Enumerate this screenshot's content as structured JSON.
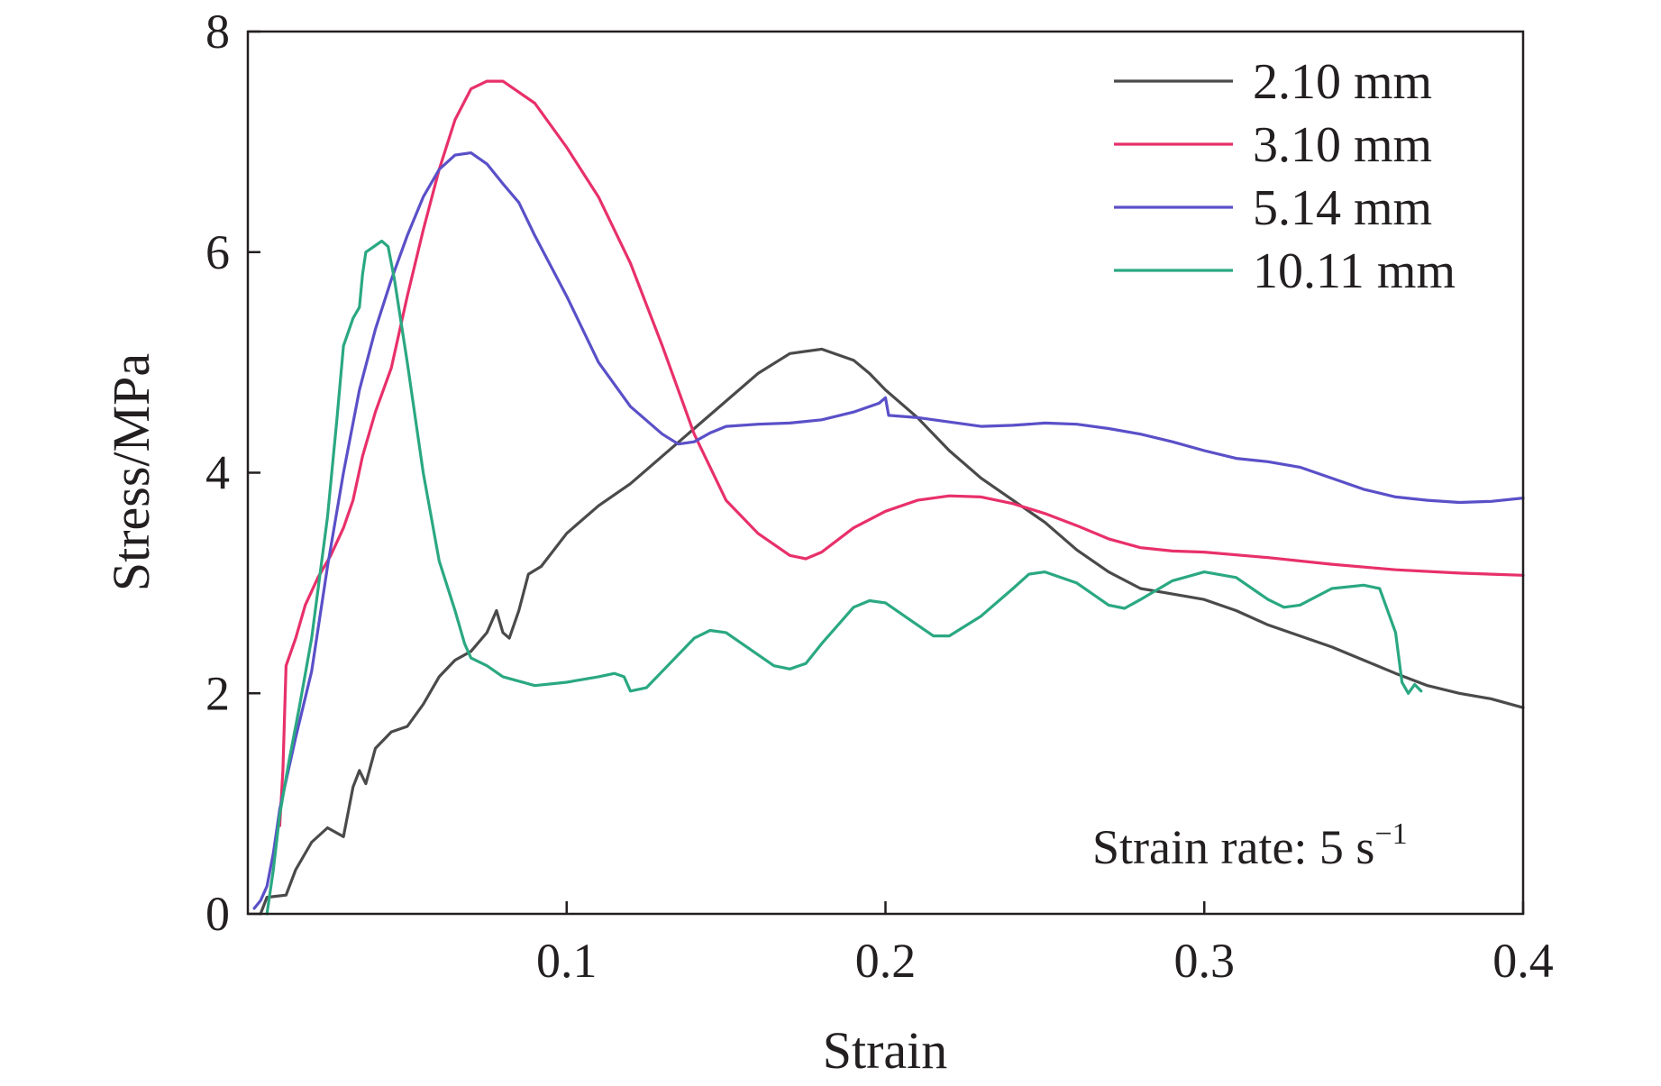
{
  "chart_data": {
    "type": "line",
    "title": "",
    "xlabel": "Strain",
    "ylabel": "Stress/MPa",
    "xlim": [
      0,
      0.4
    ],
    "ylim": [
      0,
      8
    ],
    "x_ticks": [
      "0.1",
      "0.2",
      "0.3",
      "0.4"
    ],
    "y_ticks": [
      "0",
      "2",
      "4",
      "6",
      "8"
    ],
    "x_tick_values": [
      0.1,
      0.2,
      0.3,
      0.4
    ],
    "y_tick_values": [
      0,
      2,
      4,
      6,
      8
    ],
    "grid": false,
    "legend_position": "top-right",
    "annotation": "Strain rate: 5 s",
    "annotation_superscript": "−1",
    "series": [
      {
        "name": "2.10 mm",
        "color": "#4a4a4a",
        "points": [
          [
            0.004,
            0.0
          ],
          [
            0.006,
            0.15
          ],
          [
            0.012,
            0.17
          ],
          [
            0.015,
            0.4
          ],
          [
            0.02,
            0.65
          ],
          [
            0.025,
            0.78
          ],
          [
            0.03,
            0.7
          ],
          [
            0.033,
            1.15
          ],
          [
            0.035,
            1.3
          ],
          [
            0.037,
            1.18
          ],
          [
            0.04,
            1.5
          ],
          [
            0.045,
            1.65
          ],
          [
            0.05,
            1.7
          ],
          [
            0.055,
            1.9
          ],
          [
            0.06,
            2.15
          ],
          [
            0.065,
            2.3
          ],
          [
            0.07,
            2.38
          ],
          [
            0.075,
            2.55
          ],
          [
            0.078,
            2.75
          ],
          [
            0.08,
            2.55
          ],
          [
            0.082,
            2.5
          ],
          [
            0.085,
            2.75
          ],
          [
            0.088,
            3.08
          ],
          [
            0.092,
            3.15
          ],
          [
            0.1,
            3.45
          ],
          [
            0.11,
            3.7
          ],
          [
            0.12,
            3.9
          ],
          [
            0.13,
            4.15
          ],
          [
            0.14,
            4.4
          ],
          [
            0.15,
            4.65
          ],
          [
            0.16,
            4.9
          ],
          [
            0.17,
            5.08
          ],
          [
            0.18,
            5.12
          ],
          [
            0.19,
            5.02
          ],
          [
            0.195,
            4.9
          ],
          [
            0.2,
            4.75
          ],
          [
            0.21,
            4.5
          ],
          [
            0.22,
            4.2
          ],
          [
            0.23,
            3.95
          ],
          [
            0.24,
            3.75
          ],
          [
            0.25,
            3.55
          ],
          [
            0.26,
            3.3
          ],
          [
            0.27,
            3.1
          ],
          [
            0.28,
            2.95
          ],
          [
            0.29,
            2.9
          ],
          [
            0.3,
            2.85
          ],
          [
            0.31,
            2.75
          ],
          [
            0.32,
            2.62
          ],
          [
            0.33,
            2.52
          ],
          [
            0.34,
            2.42
          ],
          [
            0.35,
            2.3
          ],
          [
            0.36,
            2.18
          ],
          [
            0.37,
            2.07
          ],
          [
            0.38,
            2.0
          ],
          [
            0.39,
            1.95
          ],
          [
            0.4,
            1.87
          ]
        ]
      },
      {
        "name": "3.10 mm",
        "color": "#e8306a",
        "points": [
          [
            0.01,
            0.8
          ],
          [
            0.011,
            1.3
          ],
          [
            0.012,
            2.25
          ],
          [
            0.015,
            2.5
          ],
          [
            0.018,
            2.8
          ],
          [
            0.022,
            3.05
          ],
          [
            0.026,
            3.25
          ],
          [
            0.03,
            3.5
          ],
          [
            0.033,
            3.75
          ],
          [
            0.036,
            4.15
          ],
          [
            0.04,
            4.55
          ],
          [
            0.045,
            4.95
          ],
          [
            0.05,
            5.6
          ],
          [
            0.055,
            6.2
          ],
          [
            0.06,
            6.75
          ],
          [
            0.065,
            7.2
          ],
          [
            0.07,
            7.48
          ],
          [
            0.075,
            7.55
          ],
          [
            0.08,
            7.55
          ],
          [
            0.09,
            7.35
          ],
          [
            0.1,
            6.95
          ],
          [
            0.11,
            6.5
          ],
          [
            0.12,
            5.9
          ],
          [
            0.13,
            5.15
          ],
          [
            0.14,
            4.35
          ],
          [
            0.15,
            3.75
          ],
          [
            0.16,
            3.45
          ],
          [
            0.17,
            3.25
          ],
          [
            0.175,
            3.22
          ],
          [
            0.18,
            3.28
          ],
          [
            0.19,
            3.5
          ],
          [
            0.2,
            3.65
          ],
          [
            0.21,
            3.75
          ],
          [
            0.22,
            3.79
          ],
          [
            0.23,
            3.78
          ],
          [
            0.24,
            3.72
          ],
          [
            0.25,
            3.63
          ],
          [
            0.26,
            3.52
          ],
          [
            0.27,
            3.4
          ],
          [
            0.28,
            3.32
          ],
          [
            0.29,
            3.29
          ],
          [
            0.3,
            3.28
          ],
          [
            0.32,
            3.23
          ],
          [
            0.34,
            3.17
          ],
          [
            0.36,
            3.12
          ],
          [
            0.38,
            3.09
          ],
          [
            0.4,
            3.07
          ]
        ]
      },
      {
        "name": "5.14 mm",
        "color": "#5a50c8",
        "points": [
          [
            0.002,
            0.05
          ],
          [
            0.004,
            0.12
          ],
          [
            0.006,
            0.25
          ],
          [
            0.008,
            0.55
          ],
          [
            0.01,
            0.95
          ],
          [
            0.015,
            1.6
          ],
          [
            0.02,
            2.2
          ],
          [
            0.025,
            3.15
          ],
          [
            0.03,
            4.0
          ],
          [
            0.035,
            4.75
          ],
          [
            0.04,
            5.3
          ],
          [
            0.045,
            5.75
          ],
          [
            0.05,
            6.15
          ],
          [
            0.055,
            6.5
          ],
          [
            0.06,
            6.75
          ],
          [
            0.065,
            6.88
          ],
          [
            0.07,
            6.9
          ],
          [
            0.075,
            6.8
          ],
          [
            0.08,
            6.62
          ],
          [
            0.085,
            6.45
          ],
          [
            0.09,
            6.15
          ],
          [
            0.1,
            5.6
          ],
          [
            0.11,
            5.0
          ],
          [
            0.12,
            4.6
          ],
          [
            0.13,
            4.35
          ],
          [
            0.135,
            4.26
          ],
          [
            0.14,
            4.28
          ],
          [
            0.145,
            4.36
          ],
          [
            0.15,
            4.42
          ],
          [
            0.16,
            4.44
          ],
          [
            0.17,
            4.45
          ],
          [
            0.18,
            4.48
          ],
          [
            0.19,
            4.55
          ],
          [
            0.198,
            4.63
          ],
          [
            0.2,
            4.68
          ],
          [
            0.201,
            4.52
          ],
          [
            0.21,
            4.5
          ],
          [
            0.22,
            4.46
          ],
          [
            0.23,
            4.42
          ],
          [
            0.24,
            4.43
          ],
          [
            0.25,
            4.45
          ],
          [
            0.26,
            4.44
          ],
          [
            0.27,
            4.4
          ],
          [
            0.28,
            4.35
          ],
          [
            0.29,
            4.28
          ],
          [
            0.3,
            4.2
          ],
          [
            0.31,
            4.13
          ],
          [
            0.32,
            4.1
          ],
          [
            0.33,
            4.05
          ],
          [
            0.34,
            3.95
          ],
          [
            0.35,
            3.85
          ],
          [
            0.36,
            3.78
          ],
          [
            0.37,
            3.75
          ],
          [
            0.38,
            3.73
          ],
          [
            0.39,
            3.74
          ],
          [
            0.4,
            3.77
          ]
        ]
      },
      {
        "name": "10.11 mm",
        "color": "#2aa882",
        "points": [
          [
            0.006,
            0.0
          ],
          [
            0.008,
            0.4
          ],
          [
            0.01,
            0.9
          ],
          [
            0.013,
            1.4
          ],
          [
            0.016,
            1.85
          ],
          [
            0.02,
            2.5
          ],
          [
            0.025,
            3.6
          ],
          [
            0.028,
            4.5
          ],
          [
            0.03,
            5.15
          ],
          [
            0.033,
            5.4
          ],
          [
            0.035,
            5.5
          ],
          [
            0.036,
            5.8
          ],
          [
            0.037,
            6.0
          ],
          [
            0.04,
            6.06
          ],
          [
            0.042,
            6.1
          ],
          [
            0.044,
            6.05
          ],
          [
            0.046,
            5.75
          ],
          [
            0.05,
            5.0
          ],
          [
            0.055,
            4.0
          ],
          [
            0.06,
            3.2
          ],
          [
            0.065,
            2.75
          ],
          [
            0.068,
            2.45
          ],
          [
            0.07,
            2.32
          ],
          [
            0.075,
            2.25
          ],
          [
            0.08,
            2.15
          ],
          [
            0.09,
            2.07
          ],
          [
            0.1,
            2.1
          ],
          [
            0.11,
            2.15
          ],
          [
            0.115,
            2.18
          ],
          [
            0.118,
            2.15
          ],
          [
            0.12,
            2.02
          ],
          [
            0.125,
            2.05
          ],
          [
            0.13,
            2.2
          ],
          [
            0.14,
            2.5
          ],
          [
            0.145,
            2.57
          ],
          [
            0.15,
            2.55
          ],
          [
            0.16,
            2.35
          ],
          [
            0.165,
            2.25
          ],
          [
            0.17,
            2.22
          ],
          [
            0.175,
            2.27
          ],
          [
            0.18,
            2.45
          ],
          [
            0.19,
            2.78
          ],
          [
            0.195,
            2.84
          ],
          [
            0.2,
            2.82
          ],
          [
            0.21,
            2.62
          ],
          [
            0.215,
            2.52
          ],
          [
            0.22,
            2.52
          ],
          [
            0.23,
            2.7
          ],
          [
            0.24,
            2.95
          ],
          [
            0.245,
            3.08
          ],
          [
            0.25,
            3.1
          ],
          [
            0.26,
            3.0
          ],
          [
            0.27,
            2.8
          ],
          [
            0.275,
            2.77
          ],
          [
            0.28,
            2.85
          ],
          [
            0.29,
            3.02
          ],
          [
            0.3,
            3.1
          ],
          [
            0.31,
            3.05
          ],
          [
            0.32,
            2.85
          ],
          [
            0.325,
            2.78
          ],
          [
            0.33,
            2.8
          ],
          [
            0.34,
            2.95
          ],
          [
            0.35,
            2.98
          ],
          [
            0.355,
            2.95
          ],
          [
            0.36,
            2.55
          ],
          [
            0.362,
            2.1
          ],
          [
            0.364,
            2.0
          ],
          [
            0.366,
            2.08
          ],
          [
            0.368,
            2.02
          ]
        ]
      }
    ]
  }
}
